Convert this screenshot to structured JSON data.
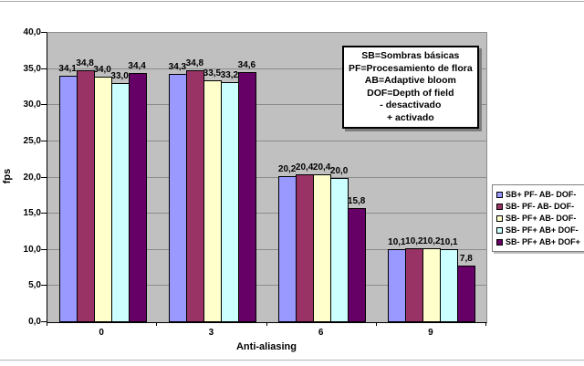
{
  "chart_data": {
    "type": "bar",
    "title": "",
    "xlabel": "Anti-aliasing",
    "ylabel": "fps",
    "categories": [
      "0",
      "3",
      "6",
      "9"
    ],
    "series": [
      {
        "name": "SB+ PF- AB- DOF-",
        "color": "#9999FF",
        "values": [
          34.1,
          34.3,
          20.2,
          10.1
        ]
      },
      {
        "name": "SB- PF- AB- DOF-",
        "color": "#993366",
        "values": [
          34.8,
          34.8,
          20.4,
          10.2
        ]
      },
      {
        "name": "SB- PF+ AB- DOF-",
        "color": "#FFFFCC",
        "values": [
          34.0,
          33.5,
          20.4,
          10.2
        ]
      },
      {
        "name": "SB- PF+ AB+ DOF-",
        "color": "#CCFFFF",
        "values": [
          33.0,
          33.2,
          20.0,
          10.1
        ]
      },
      {
        "name": "SB- PF+ AB+ DOF+",
        "color": "#660066",
        "values": [
          34.4,
          34.6,
          15.8,
          7.8
        ]
      }
    ],
    "ylim": [
      0,
      40
    ],
    "ytick_step": 5,
    "decimal_separator": ",",
    "grid": true,
    "legend_position": "right",
    "plot_bg": "#C0C0C0",
    "annotation_box_lines": [
      "SB=Sombras básicas",
      "PF=Procesamiento de flora",
      "AB=Adaptive bloom",
      "DOF=Depth of field",
      "- desactivado",
      "+ activado"
    ]
  }
}
